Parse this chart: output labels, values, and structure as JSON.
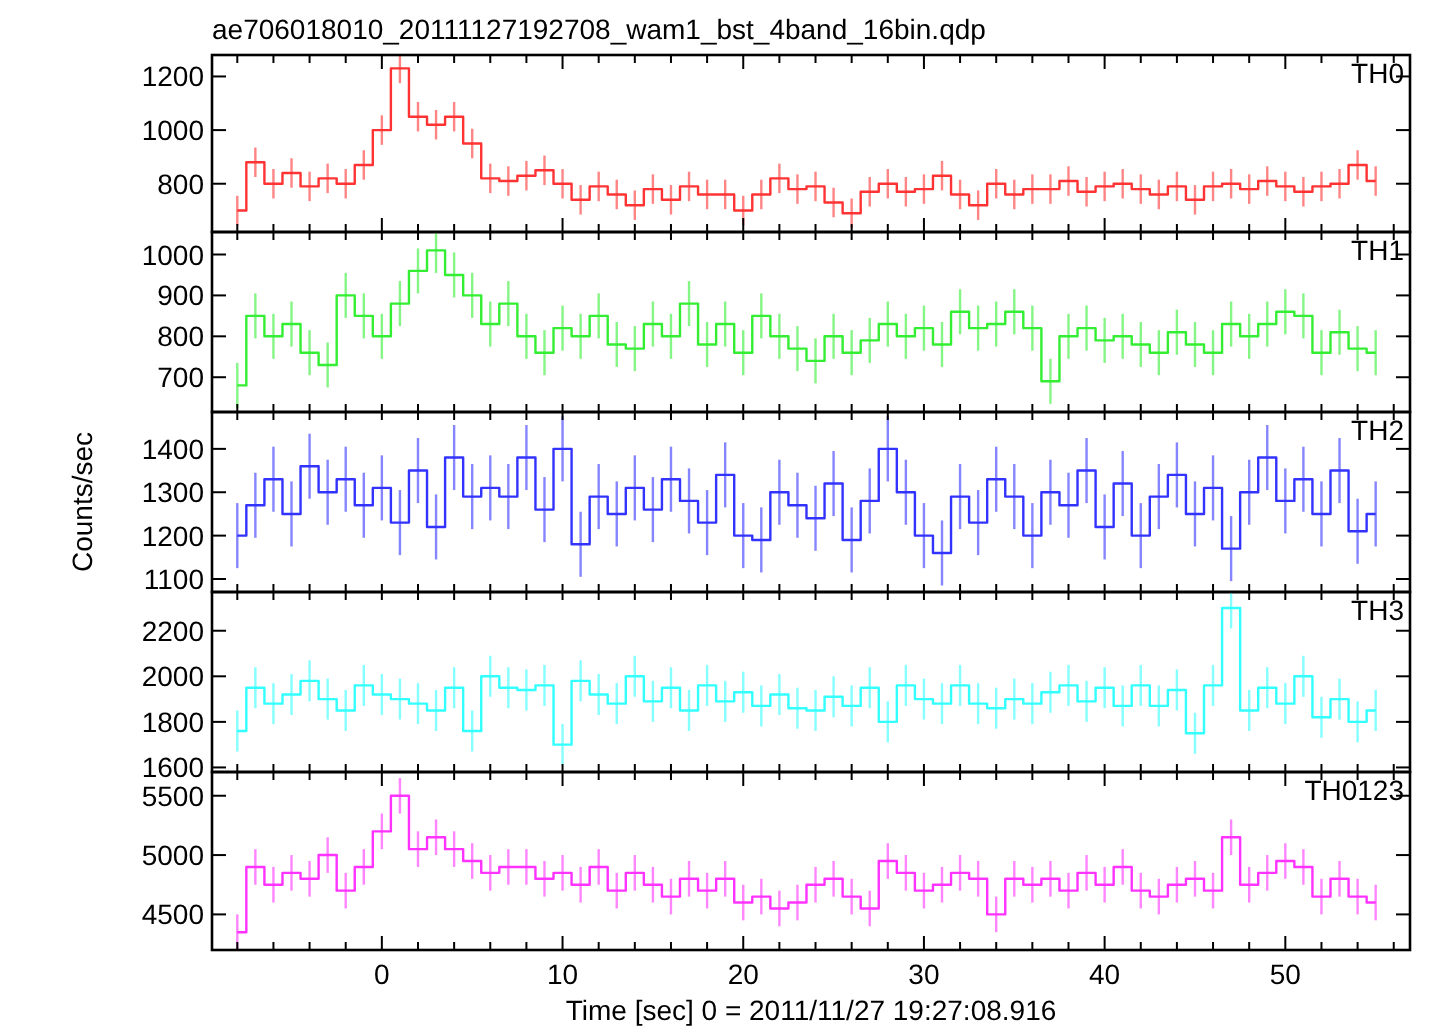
{
  "chart_data": [
    {
      "type": "step",
      "title": "ae706018010_20111127192708_wam1_bst_4band_16bin.qdp",
      "xlim": [
        -9.4,
        56.9
      ],
      "ylim": [
        620,
        1280
      ],
      "yticks": [
        800,
        1000,
        1200
      ],
      "tick_labels": "y",
      "xticks": [
        {
          "value": -8,
          "label": null
        },
        {
          "value": -6,
          "label": null
        },
        {
          "value": -4,
          "label": null
        },
        {
          "value": -2,
          "label": null
        },
        0,
        {
          "value": 2,
          "label": null
        },
        {
          "value": 4,
          "label": null
        },
        {
          "value": 6,
          "label": null
        },
        {
          "value": 8,
          "label": null
        },
        10,
        {
          "value": 12,
          "label": null
        },
        {
          "value": 14,
          "label": null
        },
        {
          "value": 16,
          "label": null
        },
        {
          "value": 18,
          "label": null
        },
        20,
        {
          "value": 22,
          "label": null
        },
        {
          "value": 24,
          "label": null
        },
        {
          "value": 26,
          "label": null
        },
        {
          "value": 28,
          "label": null
        },
        30,
        {
          "value": 32,
          "label": null
        },
        {
          "value": 34,
          "label": null
        },
        {
          "value": 36,
          "label": null
        },
        {
          "value": 38,
          "label": null
        },
        40,
        {
          "value": 42,
          "label": null
        },
        {
          "value": 44,
          "label": null
        },
        {
          "value": 46,
          "label": null
        },
        {
          "value": 48,
          "label": null
        },
        50,
        {
          "value": 52,
          "label": null
        },
        {
          "value": 54,
          "label": null
        },
        {
          "value": 56,
          "label": null
        }
      ],
      "x": [
        -8,
        -7,
        -6,
        -5,
        -4,
        -3,
        -2,
        -1,
        0,
        1,
        2,
        3,
        4,
        5,
        6,
        7,
        8,
        9,
        10,
        11,
        12,
        13,
        14,
        15,
        16,
        17,
        18,
        19,
        20,
        21,
        22,
        23,
        24,
        25,
        26,
        27,
        28,
        29,
        30,
        31,
        32,
        33,
        34,
        35,
        36,
        37,
        38,
        39,
        40,
        41,
        42,
        43,
        44,
        45,
        46,
        47,
        48,
        49,
        50,
        51,
        52,
        53,
        54,
        55
      ],
      "series": [
        {
          "name": "TH0",
          "color": "#ff3333",
          "values": [
            700,
            880,
            800,
            840,
            790,
            820,
            800,
            870,
            1000,
            1230,
            1050,
            1020,
            1050,
            950,
            820,
            810,
            830,
            850,
            800,
            740,
            790,
            760,
            720,
            780,
            740,
            790,
            760,
            760,
            700,
            760,
            820,
            780,
            790,
            730,
            690,
            770,
            800,
            770,
            780,
            830,
            760,
            720,
            800,
            760,
            780,
            780,
            810,
            770,
            790,
            800,
            780,
            760,
            790,
            740,
            790,
            800,
            780,
            810,
            790,
            770,
            790,
            800,
            870,
            810
          ],
          "errors": [
            55,
            55,
            55,
            55,
            55,
            55,
            55,
            55,
            55,
            55,
            55,
            55,
            55,
            55,
            55,
            55,
            55,
            55,
            55,
            55,
            55,
            55,
            55,
            55,
            55,
            55,
            55,
            55,
            55,
            55,
            55,
            55,
            55,
            55,
            55,
            55,
            55,
            55,
            55,
            55,
            55,
            55,
            55,
            55,
            55,
            55,
            55,
            55,
            55,
            55,
            55,
            55,
            55,
            55,
            55,
            55,
            55,
            55,
            55,
            55,
            55,
            55,
            55,
            55
          ]
        }
      ]
    },
    {
      "type": "step",
      "xlim": [
        -9.4,
        56.9
      ],
      "ylim": [
        615,
        1055
      ],
      "yticks": [
        700,
        800,
        900,
        1000
      ],
      "tick_labels": "y",
      "xticks": [
        {
          "value": -8,
          "label": null
        },
        {
          "value": -6,
          "label": null
        },
        {
          "value": -4,
          "label": null
        },
        {
          "value": -2,
          "label": null
        },
        {
          "value": 0,
          "label": null
        },
        {
          "value": 2,
          "label": null
        },
        {
          "value": 4,
          "label": null
        },
        {
          "value": 6,
          "label": null
        },
        {
          "value": 8,
          "label": null
        },
        {
          "value": 10,
          "label": null
        },
        {
          "value": 12,
          "label": null
        },
        {
          "value": 14,
          "label": null
        },
        {
          "value": 16,
          "label": null
        },
        {
          "value": 18,
          "label": null
        },
        {
          "value": 20,
          "label": null
        },
        {
          "value": 22,
          "label": null
        },
        {
          "value": 24,
          "label": null
        },
        {
          "value": 26,
          "label": null
        },
        {
          "value": 28,
          "label": null
        },
        {
          "value": 30,
          "label": null
        },
        {
          "value": 32,
          "label": null
        },
        {
          "value": 34,
          "label": null
        },
        {
          "value": 36,
          "label": null
        },
        {
          "value": 38,
          "label": null
        },
        {
          "value": 40,
          "label": null
        },
        {
          "value": 42,
          "label": null
        },
        {
          "value": 44,
          "label": null
        },
        {
          "value": 46,
          "label": null
        },
        {
          "value": 48,
          "label": null
        },
        {
          "value": 50,
          "label": null
        },
        {
          "value": 52,
          "label": null
        },
        {
          "value": 54,
          "label": null
        },
        {
          "value": 56,
          "label": null
        }
      ],
      "x": [
        -8,
        -7,
        -6,
        -5,
        -4,
        -3,
        -2,
        -1,
        0,
        1,
        2,
        3,
        4,
        5,
        6,
        7,
        8,
        9,
        10,
        11,
        12,
        13,
        14,
        15,
        16,
        17,
        18,
        19,
        20,
        21,
        22,
        23,
        24,
        25,
        26,
        27,
        28,
        29,
        30,
        31,
        32,
        33,
        34,
        35,
        36,
        37,
        38,
        39,
        40,
        41,
        42,
        43,
        44,
        45,
        46,
        47,
        48,
        49,
        50,
        51,
        52,
        53,
        54,
        55
      ],
      "series": [
        {
          "name": "TH1",
          "color": "#33ee33",
          "values": [
            680,
            850,
            800,
            830,
            760,
            730,
            900,
            850,
            800,
            880,
            960,
            1010,
            950,
            900,
            830,
            880,
            800,
            760,
            820,
            800,
            850,
            780,
            770,
            830,
            800,
            880,
            780,
            830,
            760,
            850,
            800,
            770,
            740,
            800,
            760,
            790,
            830,
            800,
            820,
            780,
            860,
            820,
            830,
            860,
            820,
            690,
            800,
            820,
            790,
            800,
            780,
            760,
            810,
            780,
            760,
            830,
            800,
            830,
            860,
            850,
            760,
            810,
            770,
            760
          ],
          "errors": [
            55,
            55,
            55,
            55,
            55,
            55,
            55,
            55,
            55,
            55,
            55,
            55,
            55,
            55,
            55,
            55,
            55,
            55,
            55,
            55,
            55,
            55,
            55,
            55,
            55,
            55,
            55,
            55,
            55,
            55,
            55,
            55,
            55,
            55,
            55,
            55,
            55,
            55,
            55,
            55,
            55,
            55,
            55,
            55,
            55,
            55,
            55,
            55,
            55,
            55,
            55,
            55,
            55,
            55,
            55,
            55,
            55,
            55,
            55,
            55,
            55,
            55,
            55,
            55
          ]
        }
      ]
    },
    {
      "type": "step",
      "ylabel": "Counts/sec",
      "xlim": [
        -9.4,
        56.9
      ],
      "ylim": [
        1070,
        1485
      ],
      "yticks": [
        1100,
        1200,
        1300,
        1400
      ],
      "tick_labels": "y",
      "xticks": [
        {
          "value": -8,
          "label": null
        },
        {
          "value": -6,
          "label": null
        },
        {
          "value": -4,
          "label": null
        },
        {
          "value": -2,
          "label": null
        },
        {
          "value": 0,
          "label": null
        },
        {
          "value": 2,
          "label": null
        },
        {
          "value": 4,
          "label": null
        },
        {
          "value": 6,
          "label": null
        },
        {
          "value": 8,
          "label": null
        },
        {
          "value": 10,
          "label": null
        },
        {
          "value": 12,
          "label": null
        },
        {
          "value": 14,
          "label": null
        },
        {
          "value": 16,
          "label": null
        },
        {
          "value": 18,
          "label": null
        },
        {
          "value": 20,
          "label": null
        },
        {
          "value": 22,
          "label": null
        },
        {
          "value": 24,
          "label": null
        },
        {
          "value": 26,
          "label": null
        },
        {
          "value": 28,
          "label": null
        },
        {
          "value": 30,
          "label": null
        },
        {
          "value": 32,
          "label": null
        },
        {
          "value": 34,
          "label": null
        },
        {
          "value": 36,
          "label": null
        },
        {
          "value": 38,
          "label": null
        },
        {
          "value": 40,
          "label": null
        },
        {
          "value": 42,
          "label": null
        },
        {
          "value": 44,
          "label": null
        },
        {
          "value": 46,
          "label": null
        },
        {
          "value": 48,
          "label": null
        },
        {
          "value": 50,
          "label": null
        },
        {
          "value": 52,
          "label": null
        },
        {
          "value": 54,
          "label": null
        },
        {
          "value": 56,
          "label": null
        }
      ],
      "x": [
        -8,
        -7,
        -6,
        -5,
        -4,
        -3,
        -2,
        -1,
        0,
        1,
        2,
        3,
        4,
        5,
        6,
        7,
        8,
        9,
        10,
        11,
        12,
        13,
        14,
        15,
        16,
        17,
        18,
        19,
        20,
        21,
        22,
        23,
        24,
        25,
        26,
        27,
        28,
        29,
        30,
        31,
        32,
        33,
        34,
        35,
        36,
        37,
        38,
        39,
        40,
        41,
        42,
        43,
        44,
        45,
        46,
        47,
        48,
        49,
        50,
        51,
        52,
        53,
        54,
        55
      ],
      "series": [
        {
          "name": "TH2",
          "color": "#3333ff",
          "values": [
            1200,
            1270,
            1330,
            1250,
            1360,
            1300,
            1330,
            1270,
            1310,
            1230,
            1350,
            1220,
            1380,
            1290,
            1310,
            1290,
            1380,
            1260,
            1400,
            1180,
            1290,
            1250,
            1310,
            1260,
            1330,
            1280,
            1230,
            1340,
            1200,
            1190,
            1300,
            1270,
            1240,
            1320,
            1190,
            1280,
            1400,
            1300,
            1200,
            1160,
            1290,
            1230,
            1330,
            1290,
            1200,
            1300,
            1270,
            1350,
            1220,
            1320,
            1200,
            1290,
            1340,
            1250,
            1310,
            1170,
            1300,
            1380,
            1280,
            1330,
            1250,
            1350,
            1210,
            1250
          ],
          "errors": [
            75,
            75,
            75,
            75,
            75,
            75,
            75,
            75,
            75,
            75,
            75,
            75,
            75,
            75,
            75,
            75,
            75,
            75,
            75,
            75,
            75,
            75,
            75,
            75,
            75,
            75,
            75,
            75,
            75,
            75,
            75,
            75,
            75,
            75,
            75,
            75,
            75,
            75,
            75,
            75,
            75,
            75,
            75,
            75,
            75,
            75,
            75,
            75,
            75,
            75,
            75,
            75,
            75,
            75,
            75,
            75,
            75,
            75,
            75,
            75,
            75,
            75,
            75,
            75
          ]
        }
      ]
    },
    {
      "type": "step",
      "xlim": [
        -9.4,
        56.9
      ],
      "ylim": [
        1580,
        2370
      ],
      "yticks": [
        1600,
        1800,
        2000,
        2200
      ],
      "tick_labels": "y",
      "xticks": [
        {
          "value": -8,
          "label": null
        },
        {
          "value": -6,
          "label": null
        },
        {
          "value": -4,
          "label": null
        },
        {
          "value": -2,
          "label": null
        },
        {
          "value": 0,
          "label": null
        },
        {
          "value": 2,
          "label": null
        },
        {
          "value": 4,
          "label": null
        },
        {
          "value": 6,
          "label": null
        },
        {
          "value": 8,
          "label": null
        },
        {
          "value": 10,
          "label": null
        },
        {
          "value": 12,
          "label": null
        },
        {
          "value": 14,
          "label": null
        },
        {
          "value": 16,
          "label": null
        },
        {
          "value": 18,
          "label": null
        },
        {
          "value": 20,
          "label": null
        },
        {
          "value": 22,
          "label": null
        },
        {
          "value": 24,
          "label": null
        },
        {
          "value": 26,
          "label": null
        },
        {
          "value": 28,
          "label": null
        },
        {
          "value": 30,
          "label": null
        },
        {
          "value": 32,
          "label": null
        },
        {
          "value": 34,
          "label": null
        },
        {
          "value": 36,
          "label": null
        },
        {
          "value": 38,
          "label": null
        },
        {
          "value": 40,
          "label": null
        },
        {
          "value": 42,
          "label": null
        },
        {
          "value": 44,
          "label": null
        },
        {
          "value": 46,
          "label": null
        },
        {
          "value": 48,
          "label": null
        },
        {
          "value": 50,
          "label": null
        },
        {
          "value": 52,
          "label": null
        },
        {
          "value": 54,
          "label": null
        },
        {
          "value": 56,
          "label": null
        }
      ],
      "x": [
        -8,
        -7,
        -6,
        -5,
        -4,
        -3,
        -2,
        -1,
        0,
        1,
        2,
        3,
        4,
        5,
        6,
        7,
        8,
        9,
        10,
        11,
        12,
        13,
        14,
        15,
        16,
        17,
        18,
        19,
        20,
        21,
        22,
        23,
        24,
        25,
        26,
        27,
        28,
        29,
        30,
        31,
        32,
        33,
        34,
        35,
        36,
        37,
        38,
        39,
        40,
        41,
        42,
        43,
        44,
        45,
        46,
        47,
        48,
        49,
        50,
        51,
        52,
        53,
        54,
        55
      ],
      "series": [
        {
          "name": "TH3",
          "color": "#33ffff",
          "values": [
            1760,
            1950,
            1880,
            1920,
            1980,
            1900,
            1850,
            1960,
            1920,
            1900,
            1880,
            1850,
            1950,
            1760,
            2000,
            1950,
            1940,
            1960,
            1700,
            1980,
            1920,
            1880,
            2000,
            1890,
            1950,
            1850,
            1960,
            1890,
            1930,
            1870,
            1920,
            1860,
            1850,
            1910,
            1870,
            1950,
            1800,
            1960,
            1900,
            1880,
            1960,
            1880,
            1860,
            1900,
            1880,
            1930,
            1960,
            1890,
            1950,
            1870,
            1960,
            1870,
            1940,
            1750,
            1960,
            2300,
            1850,
            1950,
            1880,
            2000,
            1820,
            1900,
            1800,
            1850
          ],
          "errors": [
            90,
            90,
            90,
            90,
            90,
            90,
            90,
            90,
            90,
            90,
            90,
            90,
            90,
            90,
            90,
            90,
            90,
            90,
            90,
            90,
            90,
            90,
            90,
            90,
            90,
            90,
            90,
            90,
            90,
            90,
            90,
            90,
            90,
            90,
            90,
            90,
            90,
            90,
            90,
            90,
            90,
            90,
            90,
            90,
            90,
            90,
            90,
            90,
            90,
            90,
            90,
            90,
            90,
            90,
            90,
            90,
            90,
            90,
            90,
            90,
            90,
            90,
            90,
            90
          ]
        }
      ]
    },
    {
      "type": "step",
      "xlabel": "Time [sec] 0 = 2011/11/27 19:27:08.916",
      "xlim": [
        -9.4,
        56.9
      ],
      "ylim": [
        4200,
        5700
      ],
      "yticks": [
        4500,
        5000,
        5500
      ],
      "xticks": [
        {
          "value": -8,
          "label": null
        },
        {
          "value": -6,
          "label": null
        },
        {
          "value": -4,
          "label": null
        },
        {
          "value": -2,
          "label": null
        },
        0,
        {
          "value": 2,
          "label": null
        },
        {
          "value": 4,
          "label": null
        },
        {
          "value": 6,
          "label": null
        },
        {
          "value": 8,
          "label": null
        },
        10,
        {
          "value": 12,
          "label": null
        },
        {
          "value": 14,
          "label": null
        },
        {
          "value": 16,
          "label": null
        },
        {
          "value": 18,
          "label": null
        },
        20,
        {
          "value": 22,
          "label": null
        },
        {
          "value": 24,
          "label": null
        },
        {
          "value": 26,
          "label": null
        },
        {
          "value": 28,
          "label": null
        },
        30,
        {
          "value": 32,
          "label": null
        },
        {
          "value": 34,
          "label": null
        },
        {
          "value": 36,
          "label": null
        },
        {
          "value": 38,
          "label": null
        },
        40,
        {
          "value": 42,
          "label": null
        },
        {
          "value": 44,
          "label": null
        },
        {
          "value": 46,
          "label": null
        },
        {
          "value": 48,
          "label": null
        },
        50,
        {
          "value": 52,
          "label": null
        },
        {
          "value": 54,
          "label": null
        },
        {
          "value": 56,
          "label": null
        }
      ],
      "x": [
        -8,
        -7,
        -6,
        -5,
        -4,
        -3,
        -2,
        -1,
        0,
        1,
        2,
        3,
        4,
        5,
        6,
        7,
        8,
        9,
        10,
        11,
        12,
        13,
        14,
        15,
        16,
        17,
        18,
        19,
        20,
        21,
        22,
        23,
        24,
        25,
        26,
        27,
        28,
        29,
        30,
        31,
        32,
        33,
        34,
        35,
        36,
        37,
        38,
        39,
        40,
        41,
        42,
        43,
        44,
        45,
        46,
        47,
        48,
        49,
        50,
        51,
        52,
        53,
        54,
        55
      ],
      "series": [
        {
          "name": "TH0123",
          "color": "#ff33ff",
          "values": [
            4350,
            4900,
            4750,
            4850,
            4800,
            5000,
            4700,
            4900,
            5200,
            5500,
            5050,
            5150,
            5050,
            4950,
            4850,
            4900,
            4900,
            4800,
            4850,
            4750,
            4900,
            4700,
            4850,
            4750,
            4650,
            4800,
            4700,
            4800,
            4600,
            4650,
            4550,
            4600,
            4750,
            4800,
            4650,
            4550,
            4950,
            4850,
            4700,
            4750,
            4850,
            4800,
            4500,
            4800,
            4750,
            4800,
            4700,
            4850,
            4750,
            4900,
            4700,
            4650,
            4750,
            4800,
            4700,
            5150,
            4750,
            4850,
            4950,
            4900,
            4650,
            4800,
            4650,
            4600
          ],
          "errors": [
            150,
            150,
            150,
            150,
            150,
            150,
            150,
            150,
            150,
            150,
            150,
            150,
            150,
            150,
            150,
            150,
            150,
            150,
            150,
            150,
            150,
            150,
            150,
            150,
            150,
            150,
            150,
            150,
            150,
            150,
            150,
            150,
            150,
            150,
            150,
            150,
            150,
            150,
            150,
            150,
            150,
            150,
            150,
            150,
            150,
            150,
            150,
            150,
            150,
            150,
            150,
            150,
            150,
            150,
            150,
            150,
            150,
            150,
            150,
            150,
            150,
            150,
            150,
            150
          ]
        }
      ]
    }
  ]
}
